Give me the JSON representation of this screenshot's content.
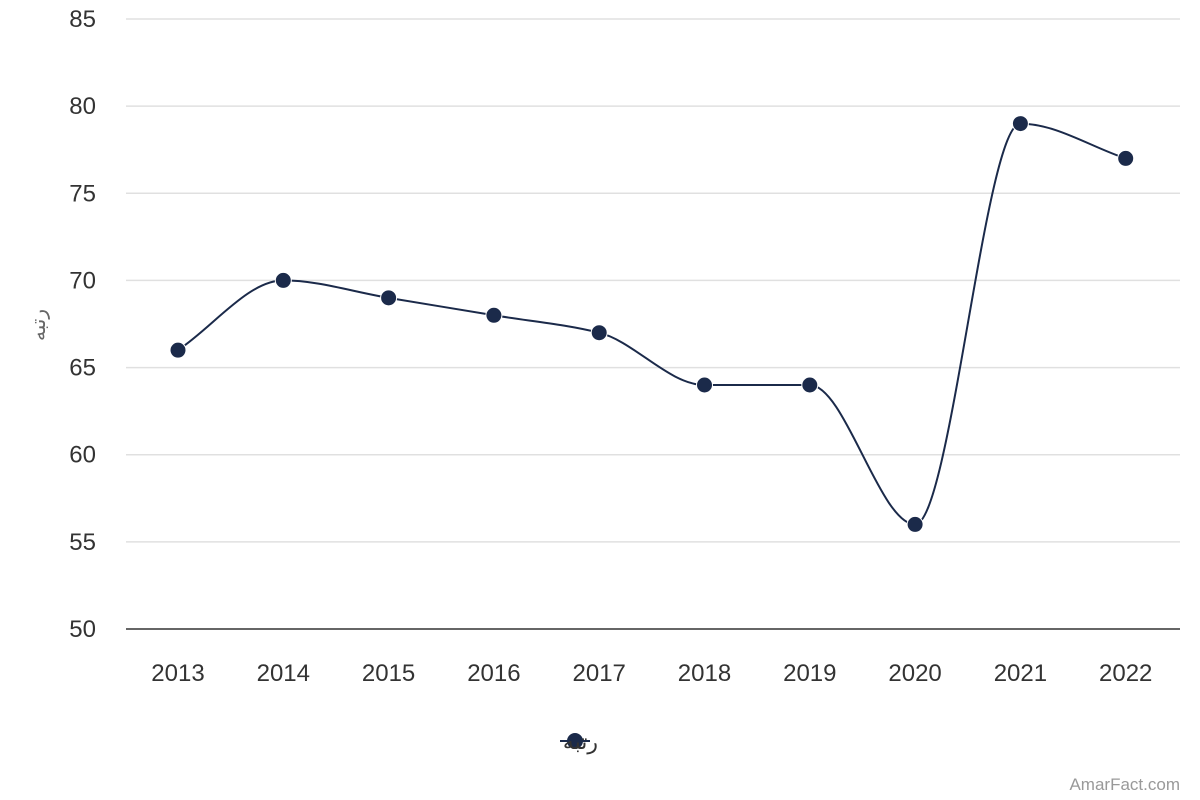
{
  "chart_data": {
    "type": "line",
    "title": "",
    "xlabel": "",
    "ylabel": "رتبه",
    "categories": [
      "2013",
      "2014",
      "2015",
      "2016",
      "2017",
      "2018",
      "2019",
      "2020",
      "2021",
      "2022"
    ],
    "series": [
      {
        "name": "رتبه",
        "values": [
          66,
          70,
          69,
          68,
          67,
          64,
          64,
          56,
          79,
          77
        ],
        "color": "#1b2a4a"
      }
    ],
    "ylim": [
      50,
      85
    ],
    "yticks": [
      50,
      55,
      60,
      65,
      70,
      75,
      80,
      85
    ],
    "grid": true,
    "smooth": true,
    "legend_position": "bottom-center"
  },
  "credit": "AmarFact.com"
}
